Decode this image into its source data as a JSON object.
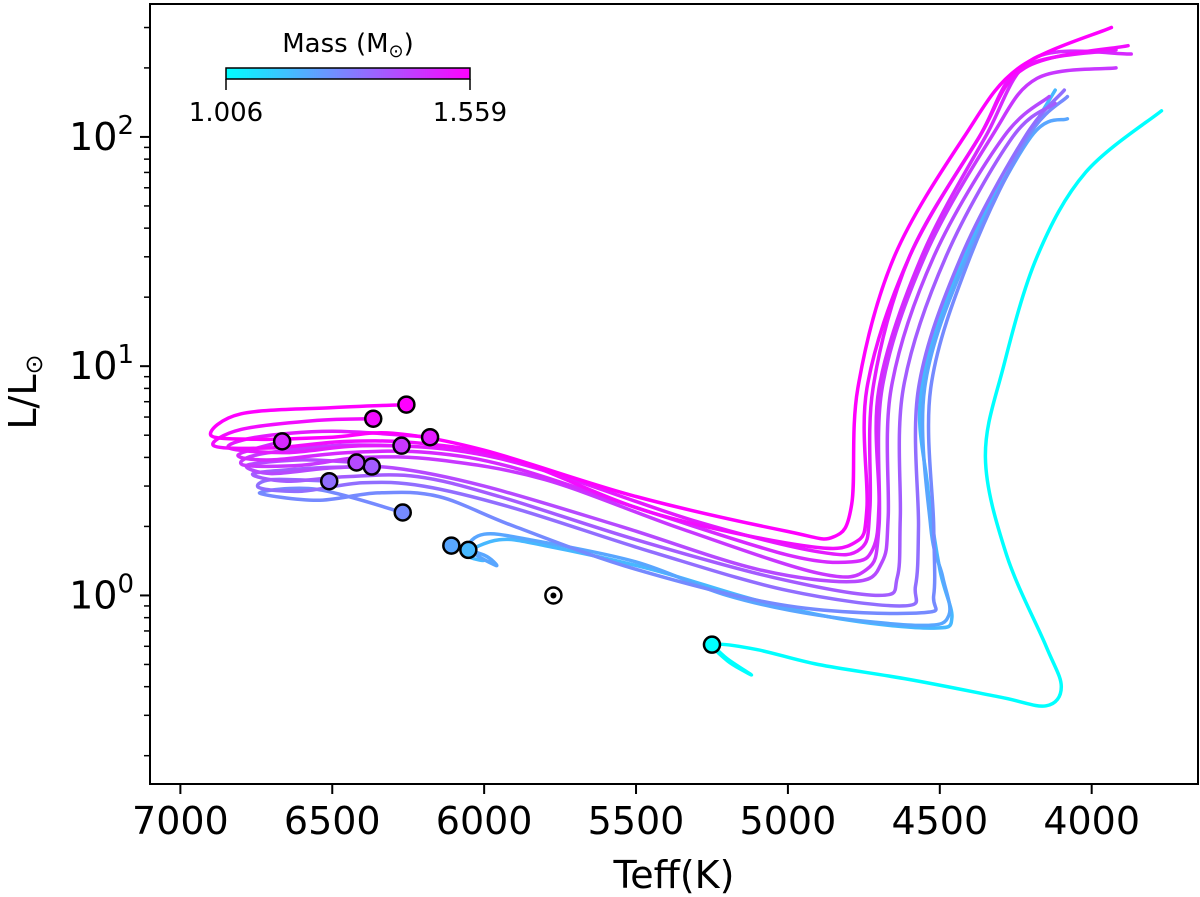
{
  "chart_data": {
    "type": "line",
    "xlabel": "Teff(K)",
    "ylabel_main": "L/L",
    "ylabel_sub": "⊙",
    "x_inverted": true,
    "xlim": [
      7100,
      3650
    ],
    "ylim": [
      0.1505,
      380
    ],
    "y_log": true,
    "x_ticks": [
      7000,
      6500,
      6000,
      5500,
      5000,
      4500,
      4000
    ],
    "x_tick_labels": [
      "7000",
      "6500",
      "6000",
      "5500",
      "5000",
      "4500",
      "4000"
    ],
    "y_ticks": [
      1,
      10,
      100
    ],
    "y_tick_base": "10",
    "y_tick_exponents": [
      "0",
      "1",
      "2"
    ],
    "colorbar": {
      "label_main": "Mass (M",
      "label_sub": "⊙",
      "label_close": ")",
      "min_label": "1.006",
      "max_label": "1.559",
      "min": 1.006,
      "max": 1.559,
      "colors": [
        "#00ffff",
        "#ff00ff"
      ]
    },
    "sun_marker": {
      "teff": 5772,
      "lum": 1.0
    },
    "series": [
      {
        "mass": 1.559,
        "start": [
          6256,
          6.8
        ],
        "points": [
          [
            6256,
            6.8
          ],
          [
            6500,
            6.6
          ],
          [
            6800,
            6.2
          ],
          [
            6900,
            5.0
          ],
          [
            6750,
            4.8
          ],
          [
            6500,
            4.9
          ],
          [
            6300,
            5.1
          ],
          [
            6000,
            4.3
          ],
          [
            5500,
            2.7
          ],
          [
            5000,
            1.9
          ],
          [
            4850,
            1.8
          ],
          [
            4790,
            2.5
          ],
          [
            4770,
            8
          ],
          [
            4650,
            30
          ],
          [
            4420,
            100
          ],
          [
            4240,
            200
          ],
          [
            3935,
            300
          ]
        ]
      },
      {
        "mass": 1.53,
        "start": [
          6365,
          5.9
        ],
        "points": [
          [
            6365,
            5.9
          ],
          [
            6550,
            5.8
          ],
          [
            6800,
            5.3
          ],
          [
            6890,
            4.5
          ],
          [
            6700,
            4.4
          ],
          [
            6450,
            4.7
          ],
          [
            6200,
            4.6
          ],
          [
            5900,
            3.9
          ],
          [
            5450,
            2.3
          ],
          [
            4950,
            1.65
          ],
          [
            4780,
            1.7
          ],
          [
            4740,
            2.4
          ],
          [
            4740,
            8
          ],
          [
            4600,
            30
          ],
          [
            4370,
            100
          ],
          [
            4220,
            200
          ],
          [
            3880,
            250
          ]
        ]
      },
      {
        "mass": 1.5,
        "start": [
          6178,
          4.9
        ],
        "points": [
          [
            6178,
            4.9
          ],
          [
            6500,
            5.2
          ],
          [
            6750,
            4.9
          ],
          [
            6840,
            4.4
          ],
          [
            6650,
            4.2
          ],
          [
            6400,
            4.5
          ],
          [
            6100,
            4.3
          ],
          [
            5800,
            3.5
          ],
          [
            5300,
            2.1
          ],
          [
            4900,
            1.55
          ],
          [
            4760,
            1.6
          ],
          [
            4730,
            2.4
          ],
          [
            4720,
            8
          ],
          [
            4600,
            30
          ],
          [
            4370,
            100
          ],
          [
            4230,
            200
          ],
          [
            3920,
            240
          ]
        ]
      },
      {
        "mass": 1.47,
        "start": [
          6665,
          4.7
        ],
        "points": [
          [
            6665,
            4.7
          ],
          [
            6810,
            4.1
          ],
          [
            6700,
            3.9
          ],
          [
            6450,
            4.2
          ],
          [
            6180,
            4.2
          ],
          [
            5900,
            3.6
          ],
          [
            5450,
            2.3
          ],
          [
            5000,
            1.5
          ],
          [
            4790,
            1.4
          ],
          [
            4720,
            1.6
          ],
          [
            4700,
            2.5
          ],
          [
            4700,
            8
          ],
          [
            4560,
            30
          ],
          [
            4350,
            100
          ],
          [
            4190,
            220
          ],
          [
            3870,
            230
          ]
        ]
      },
      {
        "mass": 1.44,
        "start": [
          6272,
          4.5
        ],
        "points": [
          [
            6272,
            4.5
          ],
          [
            6500,
            4.5
          ],
          [
            6750,
            4.1
          ],
          [
            6790,
            3.7
          ],
          [
            6600,
            3.7
          ],
          [
            6400,
            4.0
          ],
          [
            6150,
            3.9
          ],
          [
            5800,
            3.2
          ],
          [
            5350,
            1.95
          ],
          [
            4900,
            1.25
          ],
          [
            4740,
            1.3
          ],
          [
            4700,
            2.0
          ],
          [
            4690,
            8
          ],
          [
            4550,
            30
          ],
          [
            4330,
            100
          ],
          [
            4180,
            180
          ],
          [
            3920,
            200
          ]
        ]
      },
      {
        "mass": 1.4,
        "start": [
          6420,
          3.8
        ],
        "points": [
          [
            6420,
            3.8
          ],
          [
            6600,
            3.9
          ],
          [
            6780,
            3.7
          ],
          [
            6700,
            3.4
          ],
          [
            6500,
            3.6
          ],
          [
            6300,
            3.6
          ],
          [
            6000,
            3.0
          ],
          [
            5550,
            2.0
          ],
          [
            5100,
            1.3
          ],
          [
            4780,
            1.15
          ],
          [
            4690,
            1.4
          ],
          [
            4670,
            2.2
          ],
          [
            4660,
            8
          ],
          [
            4520,
            30
          ],
          [
            4290,
            100
          ],
          [
            4140,
            150
          ]
        ]
      },
      {
        "mass": 1.36,
        "start": [
          6370,
          3.65
        ],
        "points": [
          [
            6370,
            3.65
          ],
          [
            6550,
            3.6
          ],
          [
            6760,
            3.4
          ],
          [
            6650,
            3.15
          ],
          [
            6450,
            3.3
          ],
          [
            6220,
            3.3
          ],
          [
            5950,
            2.7
          ],
          [
            5500,
            1.75
          ],
          [
            5050,
            1.2
          ],
          [
            4700,
            1.0
          ],
          [
            4640,
            1.2
          ],
          [
            4630,
            2.2
          ],
          [
            4620,
            8
          ],
          [
            4480,
            30
          ],
          [
            4260,
            100
          ],
          [
            4120,
            140
          ]
        ]
      },
      {
        "mass": 1.32,
        "start": [
          6510,
          3.15
        ],
        "points": [
          [
            6510,
            3.15
          ],
          [
            6700,
            3.2
          ],
          [
            6740,
            2.95
          ],
          [
            6600,
            2.85
          ],
          [
            6400,
            3.1
          ],
          [
            6200,
            3.0
          ],
          [
            5900,
            2.4
          ],
          [
            5450,
            1.55
          ],
          [
            5000,
            1.05
          ],
          [
            4620,
            0.9
          ],
          [
            4580,
            1.1
          ],
          [
            4570,
            2.0
          ],
          [
            4570,
            8
          ],
          [
            4430,
            30
          ],
          [
            4220,
            100
          ],
          [
            4090,
            160
          ]
        ]
      },
      {
        "mass": 1.26,
        "start": [
          6268,
          2.3
        ],
        "points": [
          [
            6268,
            2.3
          ],
          [
            6550,
            2.9
          ],
          [
            6740,
            2.8
          ],
          [
            6550,
            2.6
          ],
          [
            6350,
            2.8
          ],
          [
            6150,
            2.7
          ],
          [
            5900,
            2.0
          ],
          [
            5500,
            1.3
          ],
          [
            5000,
            0.9
          ],
          [
            4560,
            0.84
          ],
          [
            4520,
            1.0
          ],
          [
            4520,
            2.0
          ],
          [
            4530,
            8
          ],
          [
            4400,
            30
          ],
          [
            4210,
            100
          ],
          [
            4080,
            150
          ]
        ]
      },
      {
        "mass": 1.2,
        "start": [
          6108,
          1.65
        ],
        "points": [
          [
            6108,
            1.65
          ],
          [
            6000,
            1.5
          ],
          [
            5960,
            1.35
          ],
          [
            6050,
            1.6
          ],
          [
            6000,
            1.85
          ],
          [
            5850,
            1.75
          ],
          [
            5500,
            1.4
          ],
          [
            5200,
            1.0
          ],
          [
            4900,
            0.82
          ],
          [
            4560,
            0.74
          ],
          [
            4470,
            0.82
          ],
          [
            4490,
            1.2
          ],
          [
            4530,
            2.0
          ],
          [
            4550,
            8
          ],
          [
            4410,
            30
          ],
          [
            4200,
            100
          ],
          [
            4080,
            120
          ]
        ]
      },
      {
        "mass": 1.16,
        "start": [
          6052,
          1.58
        ],
        "points": [
          [
            6052,
            1.58
          ],
          [
            6000,
            1.42
          ],
          [
            6060,
            1.52
          ],
          [
            5950,
            1.75
          ],
          [
            5800,
            1.65
          ],
          [
            5450,
            1.3
          ],
          [
            5100,
            0.95
          ],
          [
            4800,
            0.78
          ],
          [
            4520,
            0.72
          ],
          [
            4460,
            0.8
          ],
          [
            4500,
            1.3
          ],
          [
            4540,
            3.0
          ],
          [
            4560,
            8
          ],
          [
            4420,
            30
          ],
          [
            4210,
            100
          ],
          [
            4120,
            160
          ]
        ]
      },
      {
        "mass": 1.006,
        "start": [
          5250,
          0.61
        ],
        "points": [
          [
            5250,
            0.61
          ],
          [
            5200,
            0.53
          ],
          [
            5120,
            0.45
          ],
          [
            5200,
            0.52
          ],
          [
            5240,
            0.61
          ],
          [
            5100,
            0.58
          ],
          [
            4900,
            0.5
          ],
          [
            4600,
            0.43
          ],
          [
            4300,
            0.36
          ],
          [
            4150,
            0.33
          ],
          [
            4100,
            0.4
          ],
          [
            4150,
            0.6
          ],
          [
            4280,
            1.5
          ],
          [
            4350,
            4
          ],
          [
            4290,
            10
          ],
          [
            4180,
            30
          ],
          [
            4020,
            70
          ],
          [
            3770,
            130
          ]
        ]
      }
    ]
  }
}
